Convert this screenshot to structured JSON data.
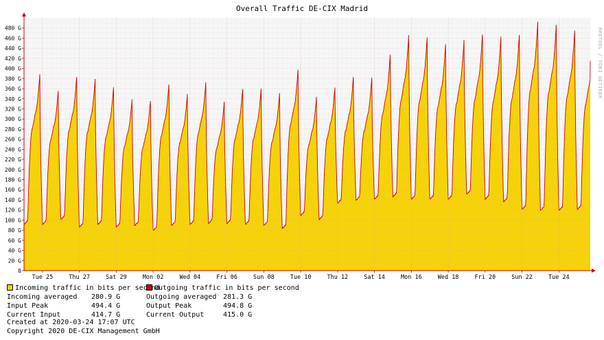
{
  "chart_data": {
    "type": "area",
    "title": "Overall Traffic DE-CIX Madrid",
    "side_credit": "RRDTOOL / TOBI OETIKER",
    "ylim": [
      0,
      500
    ],
    "ytick_values": [
      0,
      20,
      40,
      60,
      80,
      100,
      120,
      140,
      160,
      180,
      200,
      220,
      240,
      260,
      280,
      300,
      320,
      340,
      360,
      380,
      400,
      420,
      440,
      460,
      480
    ],
    "ytick_labels": [
      "0",
      "20 G",
      "40 G",
      "60 G",
      "80 G",
      "100 G",
      "120 G",
      "140 G",
      "160 G",
      "180 G",
      "200 G",
      "220 G",
      "240 G",
      "260 G",
      "280 G",
      "300 G",
      "320 G",
      "340 G",
      "360 G",
      "380 G",
      "400 G",
      "420 G",
      "440 G",
      "460 G",
      "480 G"
    ],
    "xlim_day": [
      0,
      30.7
    ],
    "xticks": [
      {
        "day": 1.0,
        "label": "Tue 25"
      },
      {
        "day": 3.0,
        "label": "Thu 27"
      },
      {
        "day": 5.0,
        "label": "Sat 29"
      },
      {
        "day": 7.0,
        "label": "Mon 02"
      },
      {
        "day": 9.0,
        "label": "Wed 04"
      },
      {
        "day": 11.0,
        "label": "Fri 06"
      },
      {
        "day": 13.0,
        "label": "Sun 08"
      },
      {
        "day": 15.0,
        "label": "Tue 10"
      },
      {
        "day": 17.0,
        "label": "Thu 12"
      },
      {
        "day": 19.0,
        "label": "Sat 14"
      },
      {
        "day": 21.0,
        "label": "Mon 16"
      },
      {
        "day": 23.0,
        "label": "Wed 18"
      },
      {
        "day": 25.0,
        "label": "Fri 20"
      },
      {
        "day": 27.0,
        "label": "Sun 22"
      },
      {
        "day": 29.0,
        "label": "Tue 24"
      }
    ],
    "daily_minimum_G": [
      90,
      90,
      100,
      85,
      90,
      85,
      88,
      78,
      88,
      90,
      92,
      92,
      90,
      88,
      82,
      108,
      100,
      132,
      138,
      140,
      145,
      140,
      140,
      140,
      150,
      140,
      135,
      120,
      118,
      118,
      120
    ],
    "daily_peak_G": [
      390,
      358,
      385,
      380,
      365,
      340,
      338,
      370,
      350,
      375,
      335,
      362,
      362,
      352,
      400,
      345,
      365,
      385,
      383,
      430,
      468,
      465,
      450,
      458,
      470,
      465,
      470,
      495,
      488,
      478,
      455
    ],
    "current_value_G": 415.0,
    "series": [
      {
        "name": "Incoming traffic in bits per second",
        "color": "#f5d20a",
        "role": "filled-area"
      },
      {
        "name": "Outgoing traffic in bits per second",
        "color": "#cc0000",
        "role": "line"
      }
    ]
  },
  "legend": {
    "incoming_label": "Incoming traffic in bits per second",
    "outgoing_label": "Outgoing traffic in bits per second",
    "incoming_color": "#f5d20a",
    "outgoing_color": "#cc0000"
  },
  "stats": {
    "in_avg_label": "Incoming averaged",
    "in_avg_value": "280.9 G",
    "in_peak_label": "Input Peak",
    "in_peak_value": "494.4 G",
    "in_cur_label": "Current Input",
    "in_cur_value": "414.7 G",
    "out_avg_label": "Outgoing averaged",
    "out_avg_value": "281.3 G",
    "out_peak_label": "Output Peak",
    "out_peak_value": "494.8 G",
    "out_cur_label": "Current Output",
    "out_cur_value": "415.0 G"
  },
  "footer": {
    "created": "Created at 2020-03-24 17:07 UTC",
    "copyright": "Copyright 2020 DE-CIX Management GmbH"
  }
}
